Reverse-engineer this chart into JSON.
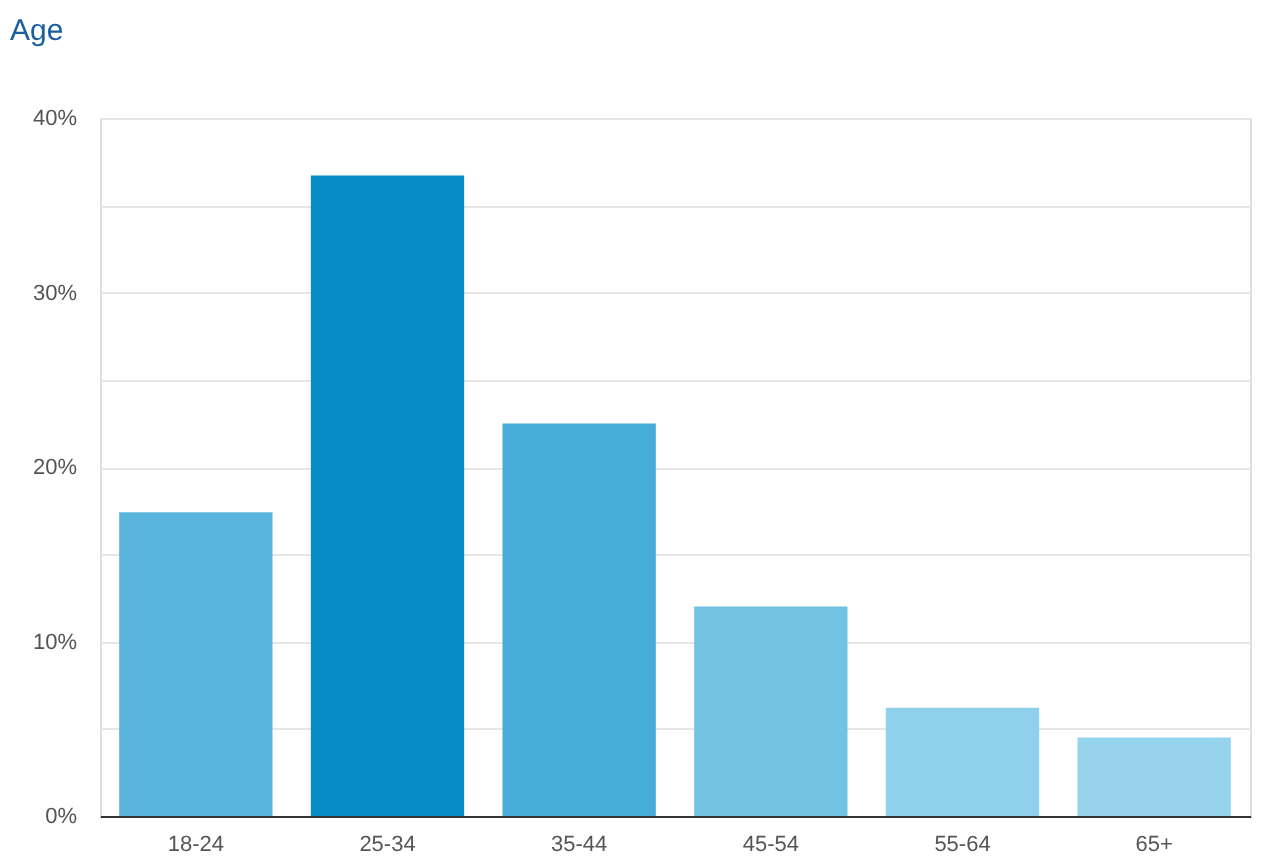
{
  "chart_data": {
    "type": "bar",
    "title": "Age",
    "categories": [
      "18-24",
      "25-34",
      "35-44",
      "45-54",
      "55-64",
      "65+"
    ],
    "values": [
      17.4,
      36.7,
      22.5,
      12.0,
      6.2,
      4.5
    ],
    "colors": [
      "#5ab4dc",
      "#078cc8",
      "#46acd8",
      "#72c2e4",
      "#8fd0ec",
      "#96d4ee"
    ],
    "ylim": [
      0,
      40
    ],
    "yticks": [
      {
        "value": 0,
        "label": "0%"
      },
      {
        "value": 5,
        "label": null
      },
      {
        "value": 10,
        "label": "10%"
      },
      {
        "value": 15,
        "label": null
      },
      {
        "value": 20,
        "label": "20%"
      },
      {
        "value": 25,
        "label": null
      },
      {
        "value": 30,
        "label": "30%"
      },
      {
        "value": 35,
        "label": null
      },
      {
        "value": 40,
        "label": "40%"
      }
    ],
    "grid": "y",
    "legend": false
  }
}
